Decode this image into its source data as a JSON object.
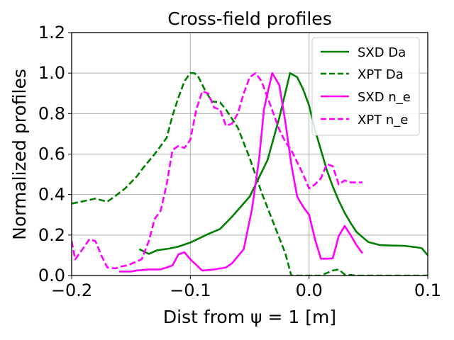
{
  "chart_data": {
    "type": "line",
    "title": "Cross-field profiles",
    "xlabel": "Dist from ψ = 1 [m]",
    "ylabel": "Normalized profiles",
    "xlim": [
      -0.2,
      0.1
    ],
    "ylim": [
      0.0,
      1.2
    ],
    "xticks": [
      -0.2,
      -0.1,
      0.0,
      0.1
    ],
    "xtick_labels": [
      "−0.2",
      "−0.1",
      "0.0",
      "0.1"
    ],
    "yticks": [
      0.0,
      0.2,
      0.4,
      0.6,
      0.8,
      1.0,
      1.2
    ],
    "ytick_labels": [
      "0.0",
      "0.2",
      "0.4",
      "0.6",
      "0.8",
      "1.0",
      "1.2"
    ],
    "grid": true,
    "legend_position": "top-right",
    "series": [
      {
        "name": "SXD Da",
        "color": "#008000",
        "dash": "solid",
        "x": [
          -0.143,
          -0.135,
          -0.128,
          -0.118,
          -0.11,
          -0.1,
          -0.094,
          -0.085,
          -0.075,
          -0.065,
          -0.05,
          -0.035,
          -0.025,
          -0.016,
          -0.01,
          -0.005,
          0.0,
          0.005,
          0.01,
          0.015,
          0.02,
          0.025,
          0.03,
          0.035,
          0.04,
          0.045,
          0.05,
          0.06,
          0.07,
          0.08,
          0.09,
          0.095,
          0.1
        ],
        "y": [
          0.13,
          0.107,
          0.125,
          0.133,
          0.143,
          0.163,
          0.18,
          0.205,
          0.23,
          0.29,
          0.39,
          0.57,
          0.78,
          1.0,
          0.98,
          0.92,
          0.84,
          0.72,
          0.62,
          0.52,
          0.44,
          0.37,
          0.31,
          0.26,
          0.215,
          0.19,
          0.165,
          0.15,
          0.148,
          0.147,
          0.14,
          0.135,
          0.1
        ]
      },
      {
        "name": "XPT Da",
        "color": "#008000",
        "dash": "dashed",
        "x": [
          -0.2,
          -0.19,
          -0.18,
          -0.17,
          -0.165,
          -0.155,
          -0.145,
          -0.14,
          -0.13,
          -0.125,
          -0.12,
          -0.115,
          -0.11,
          -0.105,
          -0.1,
          -0.097,
          -0.094,
          -0.088,
          -0.082,
          -0.075,
          -0.07,
          -0.06,
          -0.05,
          -0.04,
          -0.03,
          -0.02,
          -0.015,
          -0.01,
          0.0,
          0.005,
          0.01,
          0.02,
          0.025,
          0.03,
          0.04,
          0.05,
          0.06,
          0.07,
          0.08,
          0.09,
          0.1
        ],
        "y": [
          0.355,
          0.367,
          0.38,
          0.365,
          0.385,
          0.43,
          0.49,
          0.53,
          0.6,
          0.64,
          0.68,
          0.79,
          0.88,
          0.96,
          1.0,
          1.0,
          0.99,
          0.92,
          0.86,
          0.855,
          0.82,
          0.73,
          0.58,
          0.41,
          0.26,
          0.11,
          0.0,
          0.0,
          0.0,
          0.0,
          0.0,
          0.025,
          0.03,
          0.005,
          0.0,
          0.0,
          0.0,
          0.0,
          0.0,
          0.0,
          0.0
        ]
      },
      {
        "name": "SXD n_e",
        "color": "#ff00ff",
        "dash": "solid",
        "x": [
          -0.16,
          -0.15,
          -0.145,
          -0.135,
          -0.125,
          -0.12,
          -0.115,
          -0.11,
          -0.105,
          -0.1,
          -0.09,
          -0.08,
          -0.07,
          -0.065,
          -0.055,
          -0.048,
          -0.042,
          -0.038,
          -0.035,
          -0.031,
          -0.025,
          -0.02,
          -0.015,
          -0.01,
          -0.005,
          0.0,
          0.005,
          0.01,
          0.015,
          0.02,
          0.025,
          0.03,
          0.035,
          0.04,
          0.045
        ],
        "y": [
          0.02,
          0.02,
          0.025,
          0.03,
          0.03,
          0.04,
          0.05,
          0.105,
          0.115,
          0.08,
          0.025,
          0.03,
          0.04,
          0.06,
          0.13,
          0.33,
          0.58,
          0.82,
          0.9,
          1.0,
          0.94,
          0.76,
          0.55,
          0.39,
          0.34,
          0.3,
          0.18,
          0.083,
          0.083,
          0.085,
          0.195,
          0.245,
          0.2,
          0.15,
          0.11
        ]
      },
      {
        "name": "XPT n_e",
        "color": "#ff00ff",
        "dash": "dashed",
        "x": [
          -0.2,
          -0.197,
          -0.192,
          -0.185,
          -0.18,
          -0.175,
          -0.17,
          -0.163,
          -0.158,
          -0.153,
          -0.147,
          -0.141,
          -0.135,
          -0.13,
          -0.125,
          -0.12,
          -0.115,
          -0.11,
          -0.105,
          -0.1,
          -0.095,
          -0.09,
          -0.085,
          -0.08,
          -0.075,
          -0.07,
          -0.065,
          -0.06,
          -0.055,
          -0.05,
          -0.045,
          -0.04,
          -0.035,
          -0.03,
          -0.025,
          -0.02,
          -0.015,
          -0.01,
          -0.005,
          0.0,
          0.005,
          0.01,
          0.015,
          0.02,
          0.025,
          0.03,
          0.035,
          0.04,
          0.045
        ],
        "y": [
          0.17,
          0.08,
          0.12,
          0.18,
          0.17,
          0.1,
          0.04,
          0.035,
          0.045,
          0.05,
          0.065,
          0.08,
          0.17,
          0.28,
          0.32,
          0.45,
          0.62,
          0.64,
          0.63,
          0.67,
          0.82,
          0.91,
          0.9,
          0.83,
          0.82,
          0.74,
          0.75,
          0.8,
          0.9,
          0.98,
          1.0,
          0.96,
          0.88,
          0.8,
          0.72,
          0.66,
          0.62,
          0.56,
          0.5,
          0.43,
          0.45,
          0.48,
          0.55,
          0.54,
          0.45,
          0.47,
          0.46,
          0.46,
          0.46
        ]
      }
    ]
  }
}
